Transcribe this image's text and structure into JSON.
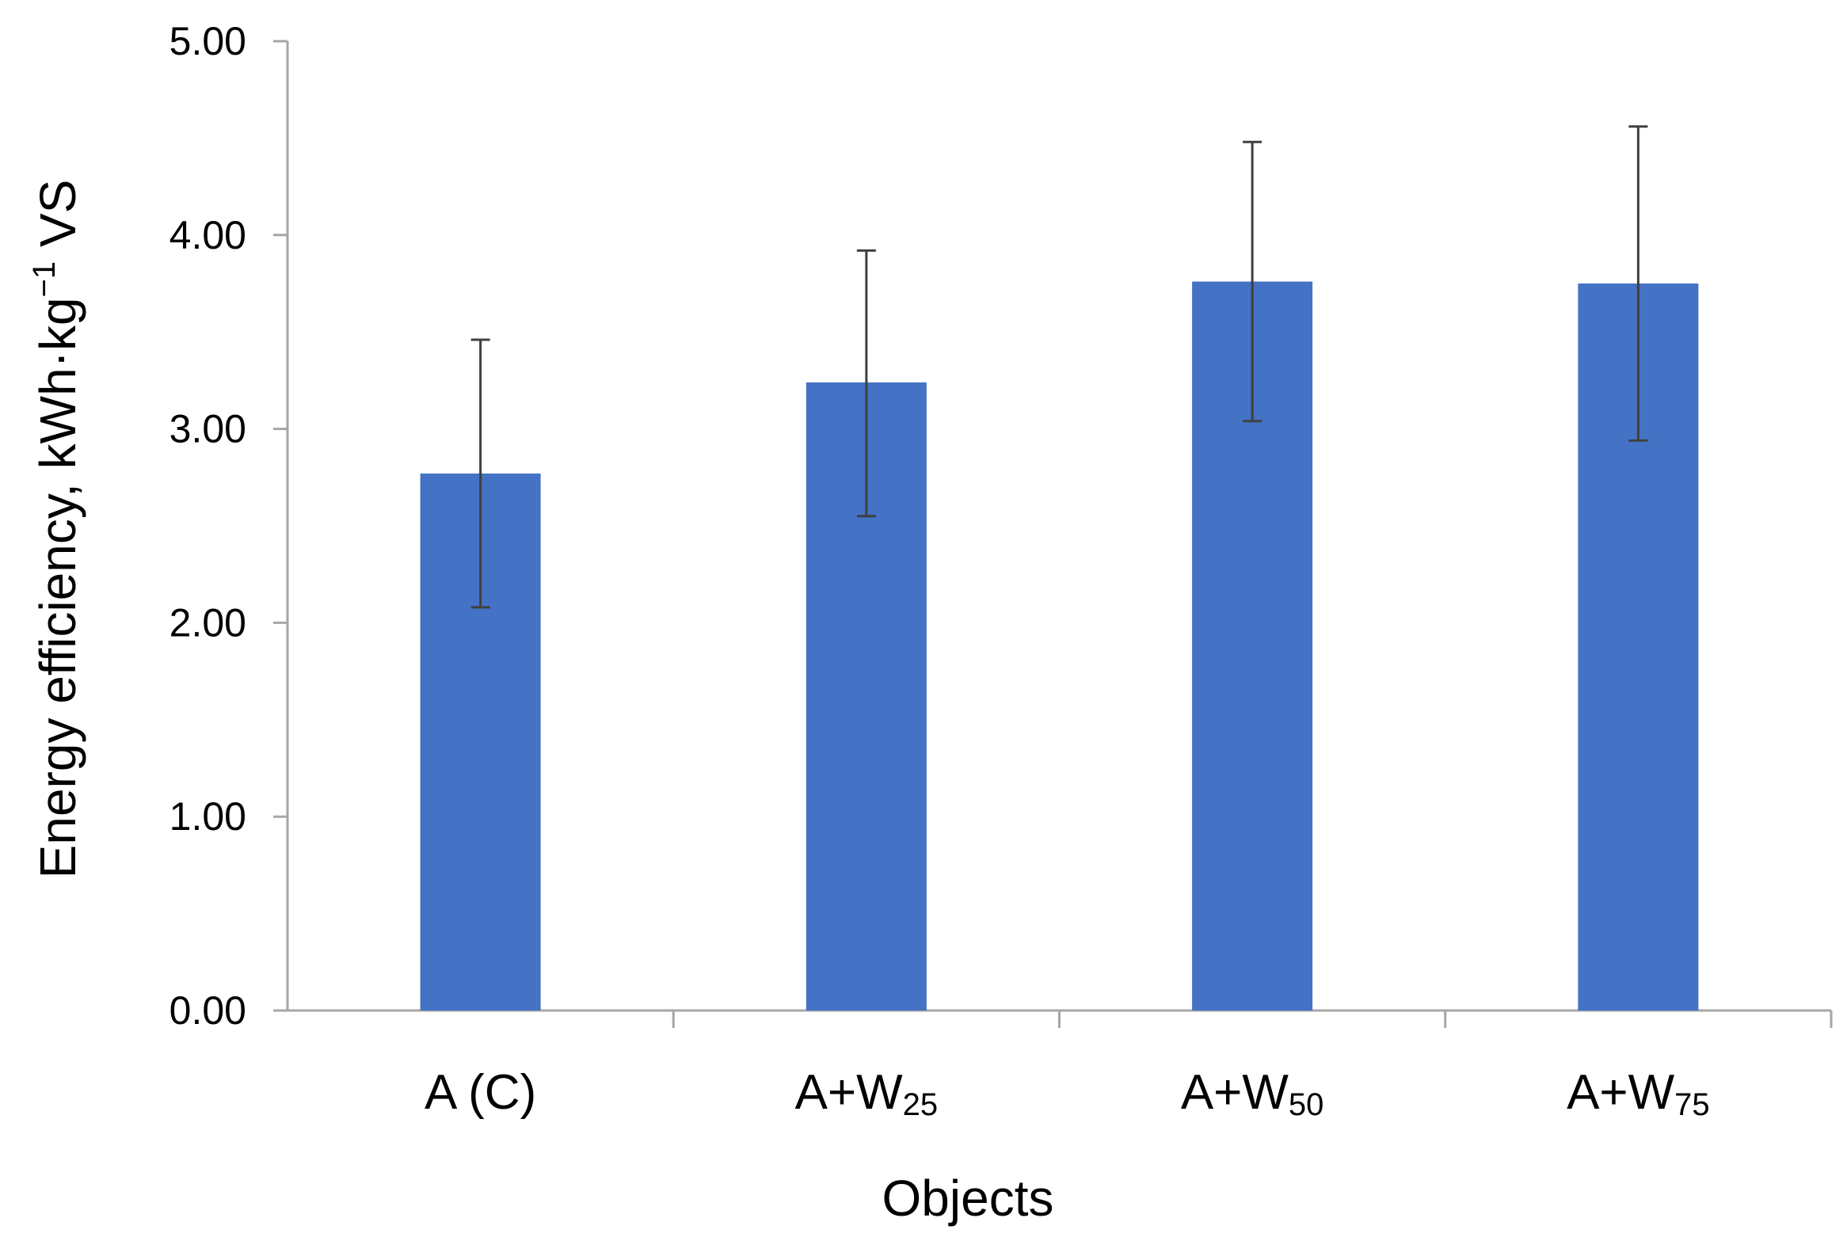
{
  "chart_data": {
    "type": "bar",
    "title": "",
    "xlabel": "Objects",
    "ylabel": {
      "prefix": "Energy efficiency, kWh·kg",
      "superscript": "−1",
      "suffix": " VS"
    },
    "ylim": [
      0,
      5
    ],
    "yticks": [
      "0.00",
      "1.00",
      "2.00",
      "3.00",
      "4.00",
      "5.00"
    ],
    "categories": [
      {
        "main": "A (C)",
        "sub": ""
      },
      {
        "main": "A+W",
        "sub": "25"
      },
      {
        "main": "A+W",
        "sub": "50"
      },
      {
        "main": "A+W",
        "sub": "75"
      }
    ],
    "values": [
      2.77,
      3.24,
      3.76,
      3.75
    ],
    "error_bars": {
      "lower": [
        2.08,
        2.55,
        3.04,
        2.94
      ],
      "upper": [
        3.46,
        3.92,
        4.48,
        4.56
      ]
    },
    "grid": false,
    "legend": "none",
    "colors": {
      "bar": "#4472C4",
      "axis": "#A6A6A6",
      "error_bar": "#404040"
    }
  }
}
